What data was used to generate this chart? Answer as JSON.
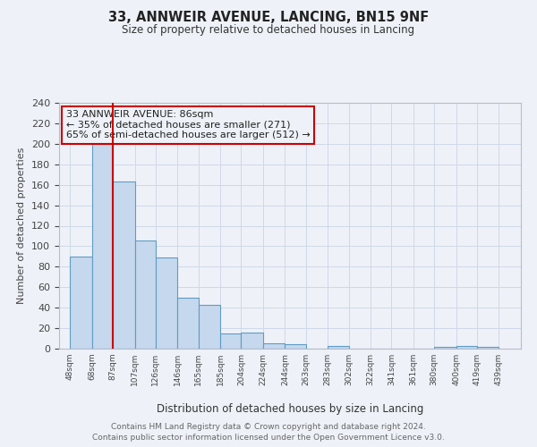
{
  "title": "33, ANNWEIR AVENUE, LANCING, BN15 9NF",
  "subtitle": "Size of property relative to detached houses in Lancing",
  "xlabel": "Distribution of detached houses by size in Lancing",
  "ylabel": "Number of detached properties",
  "bar_left_edges": [
    48,
    68,
    87,
    107,
    126,
    146,
    165,
    185,
    204,
    224,
    244,
    263,
    283,
    302,
    322,
    341,
    361,
    380,
    400,
    419
  ],
  "bar_widths": [
    20,
    19,
    20,
    19,
    20,
    19,
    20,
    19,
    20,
    20,
    19,
    20,
    19,
    20,
    19,
    20,
    19,
    20,
    19,
    20
  ],
  "bar_heights": [
    90,
    200,
    163,
    106,
    89,
    50,
    43,
    15,
    16,
    5,
    4,
    0,
    3,
    0,
    0,
    0,
    0,
    2,
    3,
    2
  ],
  "bar_facecolor": "#c5d8ed",
  "bar_edgecolor": "#5f9cc5",
  "xtick_labels": [
    "48sqm",
    "68sqm",
    "87sqm",
    "107sqm",
    "126sqm",
    "146sqm",
    "165sqm",
    "185sqm",
    "204sqm",
    "224sqm",
    "244sqm",
    "263sqm",
    "283sqm",
    "302sqm",
    "322sqm",
    "341sqm",
    "361sqm",
    "380sqm",
    "400sqm",
    "419sqm",
    "439sqm"
  ],
  "xtick_positions": [
    48,
    68,
    87,
    107,
    126,
    146,
    165,
    185,
    204,
    224,
    244,
    263,
    283,
    302,
    322,
    341,
    361,
    380,
    400,
    419,
    439
  ],
  "ylim": [
    0,
    240
  ],
  "xlim": [
    38,
    459
  ],
  "grid_color": "#d0d8e8",
  "property_line_x": 87,
  "property_line_color": "#cc0000",
  "annotation_title": "33 ANNWEIR AVENUE: 86sqm",
  "annotation_line1": "← 35% of detached houses are smaller (271)",
  "annotation_line2": "65% of semi-detached houses are larger (512) →",
  "annotation_box_edgecolor": "#cc0000",
  "footer_line1": "Contains HM Land Registry data © Crown copyright and database right 2024.",
  "footer_line2": "Contains public sector information licensed under the Open Government Licence v3.0.",
  "bg_color": "#eef2f8"
}
